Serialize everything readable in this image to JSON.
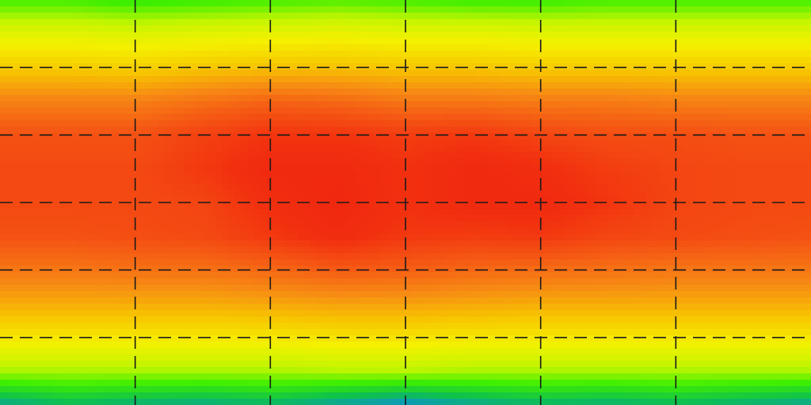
{
  "chart_data": {
    "type": "heatmap",
    "projection": "equirectangular",
    "colormap": "jet",
    "colormap_stops": [
      "#1c3fae",
      "#0a8fd8",
      "#0fc24a",
      "#3fef00",
      "#c4f500",
      "#f5f000",
      "#f7c300",
      "#f78a14",
      "#f55a14",
      "#f2300f",
      "#ec1a10"
    ],
    "title": "",
    "xlabel": "",
    "ylabel": "",
    "colorbar": false,
    "grid": true,
    "grid_style": "dashed",
    "grid_color": "#1a1a1a",
    "xlim": [
      -180,
      180
    ],
    "ylim": [
      -90,
      90
    ],
    "grid_lon": [
      -120,
      -60,
      0,
      60,
      120
    ],
    "grid_lat": [
      -60,
      -30,
      0,
      30,
      60
    ],
    "value_range": [
      0,
      1
    ],
    "lon_samples": [
      -180,
      -150,
      -120,
      -90,
      -60,
      -30,
      0,
      30,
      60,
      90,
      120,
      150,
      180
    ],
    "lat_samples": [
      90,
      75,
      60,
      45,
      30,
      15,
      0,
      -15,
      -30,
      -45,
      -60,
      -75,
      -90
    ],
    "values": [
      [
        0.3,
        0.3,
        0.28,
        0.29,
        0.3,
        0.31,
        0.3,
        0.29,
        0.29,
        0.3,
        0.3,
        0.3,
        0.3
      ],
      [
        0.46,
        0.46,
        0.45,
        0.46,
        0.47,
        0.48,
        0.47,
        0.47,
        0.46,
        0.46,
        0.46,
        0.46,
        0.46
      ],
      [
        0.58,
        0.58,
        0.57,
        0.59,
        0.6,
        0.6,
        0.59,
        0.59,
        0.58,
        0.58,
        0.58,
        0.58,
        0.58
      ],
      [
        0.72,
        0.72,
        0.72,
        0.75,
        0.78,
        0.77,
        0.74,
        0.74,
        0.73,
        0.73,
        0.72,
        0.72,
        0.72
      ],
      [
        0.82,
        0.82,
        0.82,
        0.86,
        0.89,
        0.89,
        0.87,
        0.88,
        0.85,
        0.83,
        0.83,
        0.82,
        0.82
      ],
      [
        0.84,
        0.84,
        0.84,
        0.88,
        0.93,
        0.93,
        0.9,
        0.93,
        0.91,
        0.87,
        0.85,
        0.84,
        0.84
      ],
      [
        0.84,
        0.84,
        0.84,
        0.85,
        0.91,
        0.94,
        0.9,
        0.93,
        0.93,
        0.89,
        0.85,
        0.84,
        0.84
      ],
      [
        0.82,
        0.82,
        0.83,
        0.84,
        0.88,
        0.92,
        0.88,
        0.87,
        0.88,
        0.85,
        0.84,
        0.83,
        0.82
      ],
      [
        0.74,
        0.74,
        0.75,
        0.75,
        0.77,
        0.8,
        0.79,
        0.77,
        0.76,
        0.75,
        0.74,
        0.74,
        0.74
      ],
      [
        0.64,
        0.64,
        0.64,
        0.64,
        0.65,
        0.66,
        0.66,
        0.65,
        0.64,
        0.64,
        0.64,
        0.64,
        0.64
      ],
      [
        0.52,
        0.52,
        0.52,
        0.52,
        0.52,
        0.53,
        0.53,
        0.52,
        0.52,
        0.52,
        0.52,
        0.52,
        0.52
      ],
      [
        0.38,
        0.38,
        0.38,
        0.38,
        0.38,
        0.39,
        0.39,
        0.38,
        0.38,
        0.38,
        0.38,
        0.38,
        0.38
      ],
      [
        0.14,
        0.18,
        0.16,
        0.15,
        0.17,
        0.13,
        0.1,
        0.14,
        0.17,
        0.16,
        0.18,
        0.16,
        0.14
      ]
    ]
  }
}
